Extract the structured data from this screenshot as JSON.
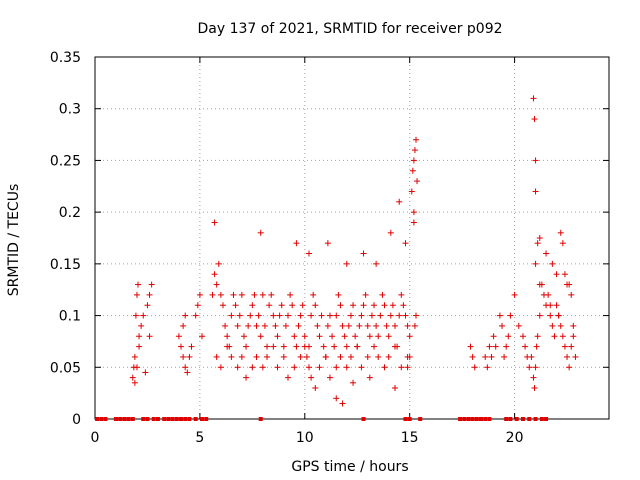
{
  "chart_data": {
    "type": "scatter",
    "title": "Day 137 of 2021, SRMTID for receiver p092",
    "xlabel": "GPS time / hours",
    "ylabel": "SRMTID / TECUs",
    "xlim": [
      0,
      24.5
    ],
    "ylim": [
      0,
      0.35
    ],
    "x_ticks": [
      0,
      5,
      10,
      15,
      20
    ],
    "x_tick_labels": [
      "0",
      "5",
      "10",
      "15",
      "20"
    ],
    "y_ticks": [
      0,
      0.05,
      0.1,
      0.15,
      0.2,
      0.25,
      0.3,
      0.35
    ],
    "y_tick_labels": [
      "0",
      "0.05",
      "0.1",
      "0.15",
      "0.2",
      "0.25",
      "0.3",
      "0.35"
    ],
    "grid": true,
    "marker": "+",
    "series": [
      {
        "name": "SRMTID",
        "color": "#e00000",
        "x": [
          1.8,
          1.85,
          1.9,
          1.95,
          2.0,
          2.05,
          2.1,
          2.2,
          2.3,
          2.5,
          2.6,
          2.7,
          1.9,
          2.0,
          2.1,
          2.4,
          2.6,
          4.0,
          4.1,
          4.2,
          4.3,
          4.4,
          4.5,
          4.6,
          4.8,
          4.9,
          5.0,
          5.1,
          4.2,
          4.3,
          5.6,
          5.7,
          5.8,
          5.9,
          6.0,
          6.1,
          6.2,
          6.3,
          6.4,
          6.5,
          6.6,
          6.7,
          6.8,
          6.9,
          7.0,
          7.1,
          7.2,
          7.3,
          7.4,
          7.5,
          7.6,
          7.7,
          7.8,
          7.9,
          8.0,
          8.1,
          8.2,
          8.3,
          8.4,
          8.5,
          8.6,
          8.7,
          8.8,
          8.9,
          9.0,
          9.1,
          9.2,
          9.3,
          9.4,
          9.5,
          9.6,
          9.7,
          9.8,
          9.9,
          10.0,
          10.1,
          10.2,
          10.3,
          10.4,
          10.5,
          10.6,
          10.7,
          10.8,
          10.9,
          11.0,
          11.1,
          11.2,
          11.3,
          11.4,
          11.5,
          11.6,
          11.7,
          11.8,
          11.9,
          12.0,
          12.1,
          12.2,
          12.3,
          12.4,
          12.5,
          12.6,
          12.7,
          12.8,
          12.9,
          13.0,
          13.1,
          13.2,
          13.3,
          13.4,
          13.5,
          13.6,
          13.7,
          13.8,
          13.9,
          14.0,
          14.1,
          14.2,
          14.3,
          14.4,
          14.5,
          14.6,
          14.7,
          14.8,
          14.9,
          15.0,
          5.8,
          6.0,
          6.3,
          6.5,
          6.8,
          7.0,
          7.2,
          7.5,
          7.7,
          8.0,
          8.2,
          8.5,
          8.7,
          9.0,
          9.2,
          9.5,
          9.8,
          10.0,
          10.2,
          10.5,
          10.7,
          11.0,
          11.2,
          11.5,
          11.7,
          12.0,
          12.2,
          12.5,
          12.7,
          13.0,
          13.3,
          13.5,
          13.8,
          14.0,
          14.3,
          14.6,
          14.9,
          5.7,
          7.9,
          9.6,
          10.2,
          11.1,
          12.0,
          12.8,
          13.4,
          14.1,
          14.5,
          14.8,
          15.2,
          10.3,
          11.5,
          11.8,
          12.3,
          13.1,
          14.3,
          15.1,
          15.15,
          15.2,
          15.25,
          15.3,
          15.35,
          15.2,
          15.3,
          15.25,
          14.9,
          15.0,
          17.9,
          18.0,
          18.1,
          18.6,
          18.7,
          18.8,
          18.9,
          19.0,
          19.1,
          19.3,
          19.4,
          19.5,
          19.6,
          19.7,
          19.8,
          20.0,
          20.2,
          20.4,
          20.5,
          20.6,
          20.7,
          20.8,
          20.9,
          20.95,
          21.0,
          21.05,
          21.1,
          21.2,
          21.3,
          21.5,
          21.6,
          21.7,
          21.8,
          21.9,
          22.0,
          22.1,
          22.2,
          22.3,
          22.4,
          22.5,
          22.6,
          22.7,
          22.8,
          22.9,
          20.9,
          20.95,
          21.0,
          21.0,
          21.1,
          21.2,
          21.5,
          21.8,
          22.0,
          22.2,
          22.3,
          22.5,
          22.7,
          21.0,
          21.2,
          21.4,
          21.7,
          22.1,
          22.4,
          22.6,
          22.8
        ],
        "y": [
          0.04,
          0.05,
          0.06,
          0.1,
          0.12,
          0.13,
          0.08,
          0.09,
          0.1,
          0.11,
          0.12,
          0.13,
          0.035,
          0.05,
          0.07,
          0.045,
          0.08,
          0.08,
          0.07,
          0.06,
          0.05,
          0.045,
          0.06,
          0.07,
          0.1,
          0.11,
          0.12,
          0.08,
          0.09,
          0.1,
          0.12,
          0.14,
          0.13,
          0.15,
          0.12,
          0.11,
          0.09,
          0.08,
          0.07,
          0.1,
          0.12,
          0.11,
          0.09,
          0.1,
          0.12,
          0.08,
          0.07,
          0.09,
          0.1,
          0.11,
          0.12,
          0.09,
          0.1,
          0.08,
          0.12,
          0.09,
          0.07,
          0.11,
          0.12,
          0.1,
          0.09,
          0.08,
          0.1,
          0.11,
          0.07,
          0.09,
          0.1,
          0.12,
          0.11,
          0.08,
          0.07,
          0.09,
          0.1,
          0.11,
          0.08,
          0.06,
          0.07,
          0.1,
          0.12,
          0.11,
          0.09,
          0.08,
          0.1,
          0.07,
          0.06,
          0.09,
          0.1,
          0.08,
          0.07,
          0.1,
          0.12,
          0.11,
          0.09,
          0.08,
          0.07,
          0.09,
          0.1,
          0.11,
          0.08,
          0.07,
          0.09,
          0.1,
          0.11,
          0.12,
          0.09,
          0.08,
          0.1,
          0.11,
          0.09,
          0.08,
          0.1,
          0.12,
          0.11,
          0.09,
          0.08,
          0.1,
          0.11,
          0.09,
          0.07,
          0.1,
          0.12,
          0.11,
          0.1,
          0.09,
          0.08,
          0.06,
          0.05,
          0.07,
          0.06,
          0.05,
          0.06,
          0.04,
          0.05,
          0.06,
          0.05,
          0.06,
          0.07,
          0.05,
          0.06,
          0.04,
          0.05,
          0.06,
          0.07,
          0.05,
          0.03,
          0.05,
          0.06,
          0.04,
          0.05,
          0.06,
          0.05,
          0.06,
          0.07,
          0.05,
          0.06,
          0.07,
          0.06,
          0.05,
          0.06,
          0.07,
          0.05,
          0.06,
          0.19,
          0.18,
          0.17,
          0.16,
          0.17,
          0.15,
          0.16,
          0.15,
          0.18,
          0.21,
          0.17,
          0.2,
          0.04,
          0.02,
          0.015,
          0.035,
          0.04,
          0.03,
          0.22,
          0.24,
          0.25,
          0.26,
          0.27,
          0.23,
          0.19,
          0.1,
          0.09,
          0.05,
          0.06,
          0.07,
          0.06,
          0.05,
          0.06,
          0.05,
          0.07,
          0.06,
          0.08,
          0.07,
          0.1,
          0.09,
          0.06,
          0.07,
          0.08,
          0.1,
          0.12,
          0.09,
          0.08,
          0.07,
          0.06,
          0.05,
          0.06,
          0.04,
          0.03,
          0.05,
          0.07,
          0.08,
          0.1,
          0.13,
          0.11,
          0.12,
          0.1,
          0.09,
          0.08,
          0.11,
          0.1,
          0.09,
          0.08,
          0.07,
          0.06,
          0.05,
          0.07,
          0.08,
          0.06,
          0.31,
          0.29,
          0.25,
          0.22,
          0.17,
          0.175,
          0.16,
          0.15,
          0.14,
          0.18,
          0.17,
          0.13,
          0.12,
          0.15,
          0.13,
          0.12,
          0.11,
          0.1,
          0.14,
          0.13,
          0.09
        ],
        "zero_x": [
          0.1,
          0.3,
          0.5,
          1.0,
          1.2,
          1.4,
          1.6,
          1.8,
          2.3,
          2.5,
          2.8,
          3.0,
          3.3,
          3.5,
          3.7,
          3.9,
          4.1,
          4.3,
          4.5,
          4.8,
          5.1,
          5.3,
          7.9,
          12.8,
          14.8,
          15.0,
          15.5,
          17.4,
          17.6,
          17.8,
          18.0,
          18.2,
          18.4,
          18.6,
          18.8,
          19.6,
          19.8,
          20.1,
          20.4,
          20.7,
          21.0,
          21.3,
          21.5
        ]
      }
    ]
  }
}
